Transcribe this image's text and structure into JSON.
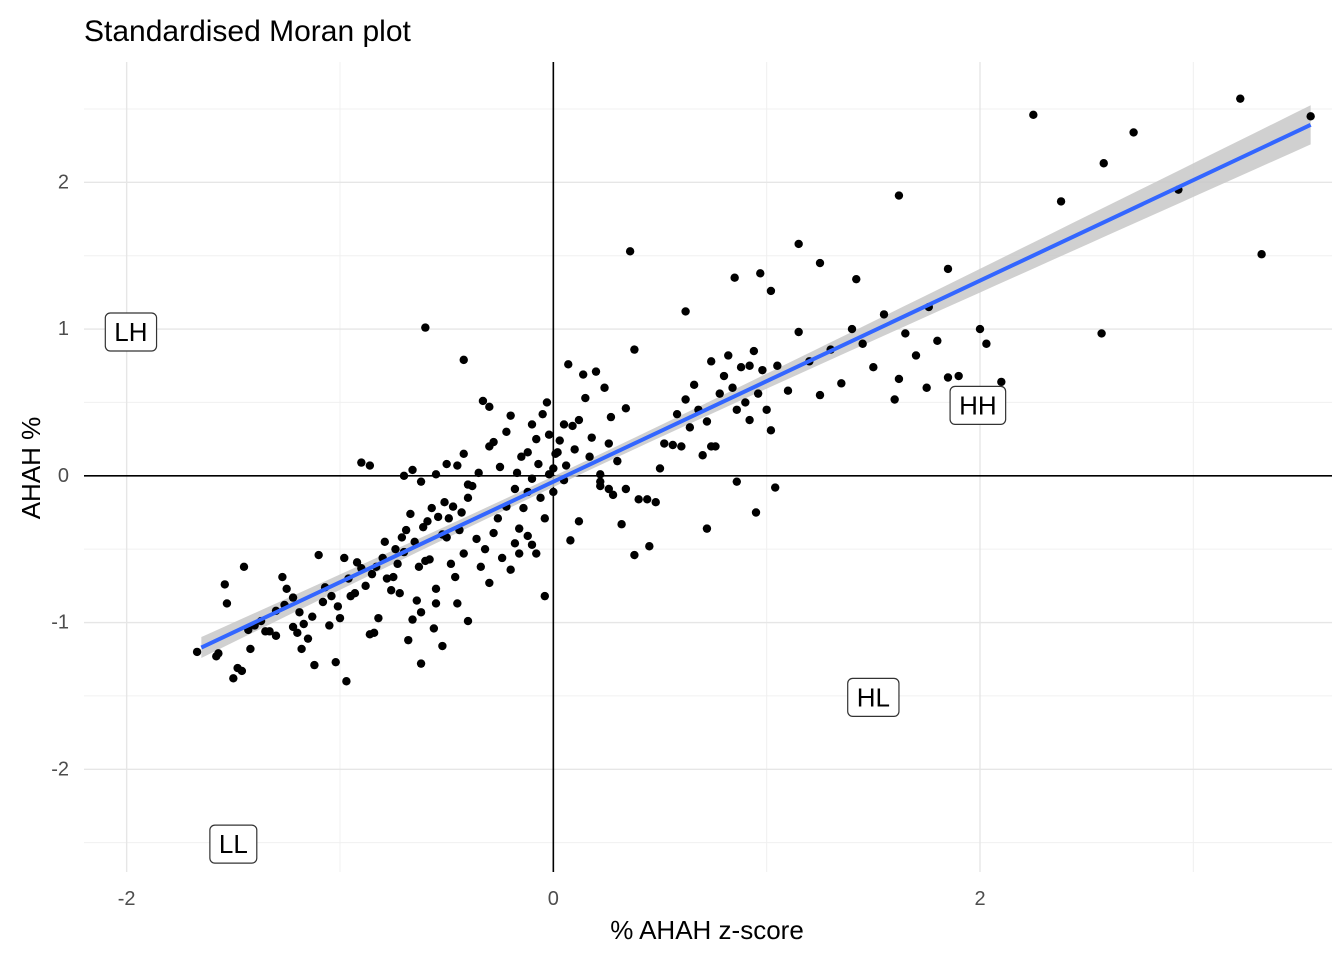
{
  "chart_data": {
    "type": "scatter",
    "title": "Standardised Moran plot",
    "xlabel": "% AHAH  z-score",
    "ylabel": "AHAH %",
    "xlim": [
      -2.2,
      3.65
    ],
    "ylim": [
      -2.7,
      2.82
    ],
    "x_ticks": [
      -2,
      0,
      2
    ],
    "y_ticks": [
      -2,
      -1,
      0,
      1,
      2
    ],
    "x_tick_labels": [
      "-2",
      "0",
      "2"
    ],
    "y_tick_labels": [
      "-2",
      "-1",
      "0",
      "1",
      "2"
    ],
    "grid": true,
    "reference_lines": {
      "x": 0,
      "y": 0
    },
    "quadrant_labels": [
      {
        "text": "LH",
        "x": -1.98,
        "y": 0.98
      },
      {
        "text": "HH",
        "x": 1.99,
        "y": 0.48
      },
      {
        "text": "HL",
        "x": 1.5,
        "y": -1.51
      },
      {
        "text": "LL",
        "x": -1.5,
        "y": -2.51
      }
    ],
    "fit_line": {
      "method": "lm",
      "x_range": [
        -1.65,
        3.55
      ],
      "intercept": -0.04,
      "slope": 0.685,
      "line_color": "#3366ff",
      "band_color": "#c8c8c8"
    },
    "point_color": "#000000",
    "points": [
      [
        -1.67,
        -1.2
      ],
      [
        -1.58,
        -1.23
      ],
      [
        -1.5,
        -1.38
      ],
      [
        -1.48,
        -1.31
      ],
      [
        -1.46,
        -1.33
      ],
      [
        -1.53,
        -0.87
      ],
      [
        -1.54,
        -0.74
      ],
      [
        -1.45,
        -0.62
      ],
      [
        -1.43,
        -1.05
      ],
      [
        -1.4,
        -1.02
      ],
      [
        -1.35,
        -1.06
      ],
      [
        -1.3,
        -0.92
      ],
      [
        -1.27,
        -0.69
      ],
      [
        -1.25,
        -0.77
      ],
      [
        -1.22,
        -0.83
      ],
      [
        -1.2,
        -1.07
      ],
      [
        -1.18,
        -1.18
      ],
      [
        -1.17,
        -1.01
      ],
      [
        -1.15,
        -1.11
      ],
      [
        -1.12,
        -1.29
      ],
      [
        -1.1,
        -0.54
      ],
      [
        -1.08,
        -0.86
      ],
      [
        -1.05,
        -1.02
      ],
      [
        -1.02,
        -1.27
      ],
      [
        -0.98,
        -0.56
      ],
      [
        -1.0,
        -0.97
      ],
      [
        -0.97,
        -1.4
      ],
      [
        -0.95,
        -0.82
      ],
      [
        -0.93,
        -0.8
      ],
      [
        -0.9,
        -0.63
      ],
      [
        -0.88,
        -0.75
      ],
      [
        -0.86,
        -1.08
      ],
      [
        -0.84,
        -1.07
      ],
      [
        -0.82,
        -0.97
      ],
      [
        -0.8,
        -0.56
      ],
      [
        -0.78,
        -0.7
      ],
      [
        -0.75,
        -0.69
      ],
      [
        -0.73,
        -0.6
      ],
      [
        -0.72,
        -0.8
      ],
      [
        -0.7,
        -0.52
      ],
      [
        -0.68,
        -1.12
      ],
      [
        -0.66,
        -0.98
      ],
      [
        -0.64,
        -0.85
      ],
      [
        -0.62,
        -0.93
      ],
      [
        -0.6,
        -0.58
      ],
      [
        -0.58,
        -0.57
      ],
      [
        -0.56,
        -1.04
      ],
      [
        -0.55,
        -0.77
      ],
      [
        -0.52,
        -0.4
      ],
      [
        -0.5,
        -0.42
      ],
      [
        -0.48,
        -0.6
      ],
      [
        -0.46,
        -0.69
      ],
      [
        -0.44,
        -0.37
      ],
      [
        -0.42,
        -0.53
      ],
      [
        -0.4,
        -0.15
      ],
      [
        -0.38,
        -0.07
      ],
      [
        -0.36,
        -0.43
      ],
      [
        -0.34,
        -0.62
      ],
      [
        -0.32,
        -0.5
      ],
      [
        -0.3,
        -0.73
      ],
      [
        -0.28,
        -0.39
      ],
      [
        -0.26,
        -0.29
      ],
      [
        -0.24,
        -0.56
      ],
      [
        -0.22,
        -0.21
      ],
      [
        -0.2,
        -0.64
      ],
      [
        -0.18,
        -0.46
      ],
      [
        -0.16,
        -0.36
      ],
      [
        -0.14,
        -0.22
      ],
      [
        -0.12,
        -0.11
      ],
      [
        -0.1,
        -0.02
      ],
      [
        -0.08,
        -0.53
      ],
      [
        -0.06,
        -0.15
      ],
      [
        -0.04,
        -0.29
      ],
      [
        -0.02,
        0.01
      ],
      [
        0.0,
        -0.11
      ],
      [
        -0.9,
        0.09
      ],
      [
        -0.86,
        0.07
      ],
      [
        -0.7,
        0.0
      ],
      [
        -0.66,
        0.04
      ],
      [
        -0.62,
        -0.04
      ],
      [
        -0.55,
        0.01
      ],
      [
        -0.5,
        0.08
      ],
      [
        -0.45,
        0.07
      ],
      [
        -0.42,
        0.15
      ],
      [
        -0.4,
        -0.06
      ],
      [
        -0.35,
        0.02
      ],
      [
        -0.3,
        0.2
      ],
      [
        -0.28,
        0.23
      ],
      [
        -0.25,
        0.06
      ],
      [
        -0.22,
        0.3
      ],
      [
        -0.2,
        0.41
      ],
      [
        -0.17,
        0.02
      ],
      [
        -0.15,
        0.13
      ],
      [
        -0.12,
        0.16
      ],
      [
        -0.1,
        0.35
      ],
      [
        -0.07,
        0.08
      ],
      [
        -0.05,
        0.42
      ],
      [
        -0.03,
        0.5
      ],
      [
        -0.02,
        0.28
      ],
      [
        0.0,
        0.05
      ],
      [
        0.01,
        0.15
      ],
      [
        0.03,
        0.24
      ],
      [
        0.05,
        0.35
      ],
      [
        -0.6,
        1.01
      ],
      [
        -0.42,
        0.79
      ],
      [
        -0.33,
        0.51
      ],
      [
        -0.3,
        0.47
      ],
      [
        -0.45,
        -0.87
      ],
      [
        -0.4,
        -0.99
      ],
      [
        -0.55,
        -0.87
      ],
      [
        -0.52,
        -1.16
      ],
      [
        -0.62,
        -1.28
      ],
      [
        -0.04,
        -0.82
      ],
      [
        -0.18,
        -0.09
      ],
      [
        0.07,
        0.76
      ],
      [
        0.14,
        0.69
      ],
      [
        0.2,
        0.71
      ],
      [
        0.24,
        0.6
      ],
      [
        0.15,
        0.53
      ],
      [
        0.12,
        0.38
      ],
      [
        0.1,
        0.18
      ],
      [
        0.17,
        0.13
      ],
      [
        0.22,
        0.01
      ],
      [
        0.26,
        0.22
      ],
      [
        0.3,
        0.1
      ],
      [
        0.27,
        0.4
      ],
      [
        0.34,
        0.46
      ],
      [
        0.38,
        0.86
      ],
      [
        0.32,
        -0.33
      ],
      [
        0.22,
        -0.04
      ],
      [
        0.28,
        -0.13
      ],
      [
        0.34,
        -0.09
      ],
      [
        0.4,
        -0.16
      ],
      [
        0.38,
        -0.54
      ],
      [
        0.45,
        -0.48
      ],
      [
        0.44,
        -0.16
      ],
      [
        0.48,
        -0.18
      ],
      [
        0.5,
        0.05
      ],
      [
        0.52,
        0.22
      ],
      [
        0.56,
        0.21
      ],
      [
        0.58,
        0.42
      ],
      [
        0.6,
        0.2
      ],
      [
        0.62,
        0.52
      ],
      [
        0.64,
        0.33
      ],
      [
        0.66,
        0.62
      ],
      [
        0.68,
        0.45
      ],
      [
        0.7,
        0.14
      ],
      [
        0.72,
        0.37
      ],
      [
        0.74,
        0.78
      ],
      [
        0.76,
        0.2
      ],
      [
        0.78,
        0.56
      ],
      [
        0.8,
        0.68
      ],
      [
        0.82,
        0.82
      ],
      [
        0.84,
        0.6
      ],
      [
        0.86,
        0.45
      ],
      [
        0.88,
        0.74
      ],
      [
        0.9,
        0.5
      ],
      [
        0.92,
        0.38
      ],
      [
        0.94,
        0.85
      ],
      [
        0.96,
        0.56
      ],
      [
        0.98,
        0.72
      ],
      [
        1.0,
        0.45
      ],
      [
        1.02,
        0.31
      ],
      [
        1.05,
        0.75
      ],
      [
        1.1,
        0.58
      ],
      [
        1.15,
        0.98
      ],
      [
        1.2,
        0.78
      ],
      [
        1.25,
        0.55
      ],
      [
        1.3,
        0.86
      ],
      [
        1.35,
        0.63
      ],
      [
        1.4,
        1.0
      ],
      [
        1.45,
        0.9
      ],
      [
        1.5,
        0.74
      ],
      [
        1.55,
        1.1
      ],
      [
        1.6,
        0.52
      ],
      [
        1.65,
        0.97
      ],
      [
        1.7,
        0.82
      ],
      [
        1.75,
        0.6
      ],
      [
        1.8,
        0.92
      ],
      [
        1.85,
        0.67
      ],
      [
        1.9,
        0.68
      ],
      [
        2.0,
        1.0
      ],
      [
        2.03,
        0.9
      ],
      [
        2.1,
        0.64
      ],
      [
        0.36,
        1.53
      ],
      [
        0.85,
        1.35
      ],
      [
        0.97,
        1.38
      ],
      [
        1.15,
        1.58
      ],
      [
        1.25,
        1.45
      ],
      [
        1.42,
        1.34
      ],
      [
        1.62,
        1.91
      ],
      [
        1.85,
        1.41
      ],
      [
        0.62,
        1.12
      ],
      [
        0.92,
        0.75
      ],
      [
        1.02,
        1.26
      ],
      [
        0.72,
        -0.36
      ],
      [
        0.95,
        -0.25
      ],
      [
        1.04,
        -0.08
      ],
      [
        0.86,
        -0.04
      ],
      [
        0.74,
        0.2
      ],
      [
        2.25,
        2.46
      ],
      [
        2.38,
        1.87
      ],
      [
        2.58,
        2.13
      ],
      [
        2.72,
        2.34
      ],
      [
        2.93,
        1.95
      ],
      [
        3.22,
        2.57
      ],
      [
        3.32,
        1.51
      ],
      [
        3.55,
        2.45
      ],
      [
        2.57,
        0.97
      ],
      [
        1.62,
        0.66
      ],
      [
        1.76,
        1.15
      ],
      [
        0.08,
        -0.44
      ],
      [
        0.12,
        -0.31
      ],
      [
        0.09,
        0.34
      ],
      [
        0.05,
        -0.03
      ],
      [
        -0.12,
        -0.41
      ],
      [
        -0.1,
        -0.47
      ],
      [
        -0.16,
        -0.53
      ],
      [
        0.18,
        0.26
      ],
      [
        0.22,
        -0.07
      ],
      [
        0.26,
        -0.09
      ],
      [
        0.06,
        0.07
      ],
      [
        0.02,
        0.16
      ],
      [
        -0.08,
        0.25
      ],
      [
        -1.57,
        -1.21
      ],
      [
        -1.42,
        -1.18
      ],
      [
        -1.37,
        -0.99
      ],
      [
        -1.33,
        -1.06
      ],
      [
        -1.3,
        -1.09
      ],
      [
        -1.26,
        -0.88
      ],
      [
        -1.22,
        -1.03
      ],
      [
        -1.19,
        -0.93
      ],
      [
        -1.13,
        -0.96
      ],
      [
        -1.07,
        -0.76
      ],
      [
        -1.04,
        -0.82
      ],
      [
        -1.01,
        -0.89
      ],
      [
        -0.96,
        -0.7
      ],
      [
        -0.92,
        -0.59
      ],
      [
        -0.85,
        -0.67
      ],
      [
        -0.83,
        -0.62
      ],
      [
        -0.79,
        -0.45
      ],
      [
        -0.76,
        -0.78
      ],
      [
        -0.74,
        -0.5
      ],
      [
        -0.71,
        -0.42
      ],
      [
        -0.69,
        -0.37
      ],
      [
        -0.67,
        -0.26
      ],
      [
        -0.65,
        -0.45
      ],
      [
        -0.63,
        -0.62
      ],
      [
        -0.61,
        -0.35
      ],
      [
        -0.59,
        -0.31
      ],
      [
        -0.57,
        -0.22
      ],
      [
        -0.54,
        -0.28
      ],
      [
        -0.51,
        -0.18
      ],
      [
        -0.49,
        -0.29
      ],
      [
        -0.47,
        -0.21
      ],
      [
        -0.43,
        -0.25
      ]
    ]
  }
}
